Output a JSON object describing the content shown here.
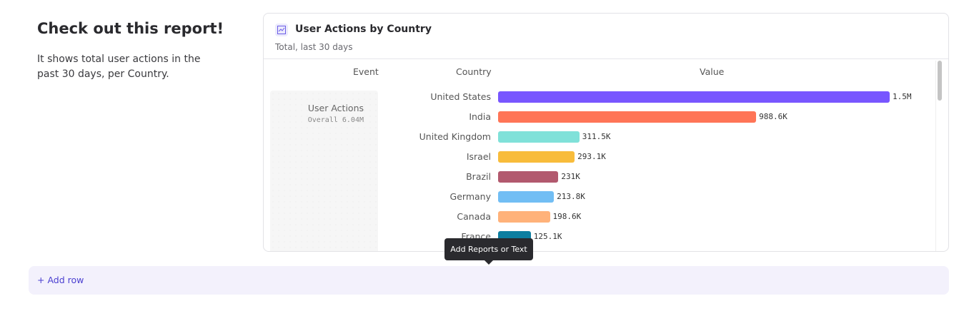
{
  "intro": {
    "title": "Check out this report!",
    "text": "It shows total user actions in the past 30 days, per Country."
  },
  "report": {
    "icon": "line-chart-icon",
    "title": "User Actions by Country",
    "subtitle": "Total, last 30 days",
    "columns": [
      "Event",
      "Country",
      "Value"
    ],
    "event": {
      "name": "User Actions",
      "overall": "Overall  6.04M"
    },
    "rows": [
      {
        "country": "United States",
        "value": 1500000,
        "label": "1.5M",
        "color": "#7856ff"
      },
      {
        "country": "India",
        "value": 988600,
        "label": "988.6K",
        "color": "#ff7557"
      },
      {
        "country": "United Kingdom",
        "value": 311500,
        "label": "311.5K",
        "color": "#80e1d9"
      },
      {
        "country": "Israel",
        "value": 293100,
        "label": "293.1K",
        "color": "#f8bc3b"
      },
      {
        "country": "Brazil",
        "value": 231000,
        "label": "231K",
        "color": "#b2596e"
      },
      {
        "country": "Germany",
        "value": 213800,
        "label": "213.8K",
        "color": "#72bef4"
      },
      {
        "country": "Canada",
        "value": 198600,
        "label": "198.6K",
        "color": "#ffb27a"
      },
      {
        "country": "France",
        "value": 125100,
        "label": "125.1K",
        "color": "#0d7ea0"
      }
    ]
  },
  "tooltip": "Add Reports or Text",
  "add_row": "+ Add row"
}
